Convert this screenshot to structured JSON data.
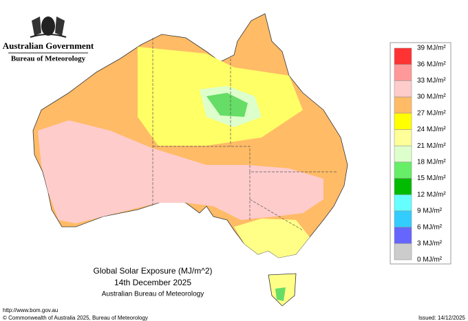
{
  "header": {
    "government": "Australian Government",
    "bureau": "Bureau of Meteorology"
  },
  "caption": {
    "title": "Global Solar Exposure (MJ/m^2)",
    "date": "14th December 2025",
    "source": "Australian Bureau of Meteorology"
  },
  "legend": {
    "labels": [
      "39 MJ/m²",
      "36 MJ/m²",
      "33 MJ/m²",
      "30 MJ/m²",
      "27 MJ/m²",
      "24 MJ/m²",
      "21 MJ/m²",
      "18 MJ/m²",
      "15 MJ/m²",
      "12 MJ/m²",
      "9 MJ/m²",
      "6 MJ/m²",
      "3 MJ/m²",
      "0 MJ/m²"
    ],
    "colors": [
      "#ff3333",
      "#ff9999",
      "#ffcccc",
      "#ffbb66",
      "#ffff00",
      "#ffff99",
      "#ddffcc",
      "#66ee66",
      "#00bb00",
      "#66ffff",
      "#33ccff",
      "#6666ff",
      "#cccccc"
    ]
  },
  "footer": {
    "url": "http://www.bom.gov.au",
    "copyright": "© Commonwealth of Australia 2025, Bureau of Meteorology",
    "issued": "Issued: 14/12/2025"
  }
}
